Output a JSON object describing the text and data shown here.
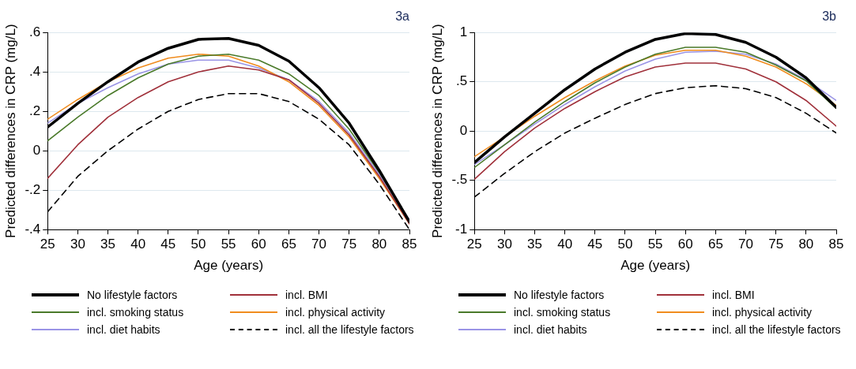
{
  "chart_data": [
    {
      "type": "line",
      "title": "3a",
      "xlabel": "Age (years)",
      "ylabel": "Predicted differences in CRP (mg/L)",
      "x": [
        25,
        30,
        35,
        40,
        45,
        50,
        55,
        60,
        65,
        70,
        75,
        80,
        85
      ],
      "xlim": [
        25,
        85
      ],
      "xticks": [
        25,
        30,
        35,
        40,
        45,
        50,
        55,
        60,
        65,
        70,
        75,
        80,
        85
      ],
      "ylim": [
        -0.4,
        0.6
      ],
      "yticks": [
        {
          "value": -0.4,
          "label": "-.4"
        },
        {
          "value": -0.2,
          "label": "-.2"
        },
        0,
        {
          "value": 0.2,
          "label": ".2"
        },
        {
          "value": 0.4,
          "label": ".4"
        },
        {
          "value": 0.6,
          "label": ".6"
        }
      ],
      "grid": "y",
      "legend": "bottom",
      "marker": "none",
      "series": [
        {
          "name": "No lifestyle factors",
          "color": "#000000",
          "values": [
            0.12,
            0.24,
            0.35,
            0.45,
            0.52,
            0.565,
            0.57,
            0.535,
            0.455,
            0.32,
            0.14,
            -0.1,
            -0.36
          ]
        },
        {
          "name": "incl. BMI",
          "color": "#a0303a",
          "values": [
            -0.14,
            0.03,
            0.17,
            0.27,
            0.35,
            0.4,
            0.43,
            0.41,
            0.36,
            0.24,
            0.08,
            -0.13,
            -0.37
          ]
        },
        {
          "name": "incl. smoking status",
          "color": "#4a7a2a",
          "values": [
            0.05,
            0.17,
            0.28,
            0.37,
            0.44,
            0.48,
            0.49,
            0.46,
            0.39,
            0.28,
            0.11,
            -0.11,
            -0.36
          ]
        },
        {
          "name": "incl. physical activity",
          "color": "#f08c1e",
          "values": [
            0.16,
            0.26,
            0.35,
            0.42,
            0.47,
            0.49,
            0.48,
            0.43,
            0.35,
            0.23,
            0.07,
            -0.14,
            -0.37
          ]
        },
        {
          "name": "incl. diet habits",
          "color": "#9a94e6",
          "values": [
            0.14,
            0.24,
            0.32,
            0.39,
            0.44,
            0.46,
            0.46,
            0.42,
            0.36,
            0.25,
            0.09,
            -0.12,
            -0.35
          ]
        },
        {
          "name": "incl. all the lifestyle factors",
          "color": "#000000",
          "line_style": "dashed",
          "values": [
            -0.31,
            -0.13,
            0.0,
            0.11,
            0.2,
            0.26,
            0.29,
            0.29,
            0.25,
            0.16,
            0.03,
            -0.17,
            -0.4
          ]
        }
      ]
    },
    {
      "type": "line",
      "title": "3b",
      "xlabel": "Age (years)",
      "ylabel": "Predicted differences in CRP (mg/L)",
      "x": [
        25,
        30,
        35,
        40,
        45,
        50,
        55,
        60,
        65,
        70,
        75,
        80,
        85
      ],
      "xlim": [
        25,
        85
      ],
      "xticks": [
        25,
        30,
        35,
        40,
        45,
        50,
        55,
        60,
        65,
        70,
        75,
        80,
        85
      ],
      "ylim": [
        -1,
        1
      ],
      "yticks": [
        -1,
        {
          "value": -0.5,
          "label": "-.5"
        },
        0,
        {
          "value": 0.5,
          "label": ".5"
        },
        1
      ],
      "grid": "y",
      "legend": "bottom",
      "marker": "none",
      "series": [
        {
          "name": "No lifestyle factors",
          "color": "#000000",
          "values": [
            -0.32,
            -0.06,
            0.18,
            0.42,
            0.63,
            0.8,
            0.93,
            0.99,
            0.98,
            0.9,
            0.75,
            0.54,
            0.24
          ]
        },
        {
          "name": "incl. BMI",
          "color": "#a0303a",
          "values": [
            -0.49,
            -0.21,
            0.03,
            0.23,
            0.4,
            0.55,
            0.65,
            0.69,
            0.69,
            0.63,
            0.5,
            0.31,
            0.05
          ]
        },
        {
          "name": "incl. smoking status",
          "color": "#4a7a2a",
          "values": [
            -0.37,
            -0.14,
            0.09,
            0.3,
            0.49,
            0.65,
            0.78,
            0.85,
            0.85,
            0.8,
            0.67,
            0.51,
            0.23
          ]
        },
        {
          "name": "incl. physical activity",
          "color": "#f08c1e",
          "values": [
            -0.26,
            -0.06,
            0.15,
            0.34,
            0.51,
            0.66,
            0.77,
            0.82,
            0.82,
            0.76,
            0.65,
            0.48,
            0.26
          ]
        },
        {
          "name": "incl. diet habits",
          "color": "#9a94e6",
          "values": [
            -0.34,
            -0.14,
            0.07,
            0.27,
            0.45,
            0.61,
            0.73,
            0.8,
            0.81,
            0.78,
            0.68,
            0.52,
            0.31
          ]
        },
        {
          "name": "incl. all the lifestyle factors",
          "color": "#000000",
          "line_style": "dashed",
          "values": [
            -0.67,
            -0.43,
            -0.21,
            -0.02,
            0.13,
            0.27,
            0.38,
            0.44,
            0.46,
            0.43,
            0.34,
            0.18,
            -0.02
          ]
        }
      ]
    }
  ]
}
